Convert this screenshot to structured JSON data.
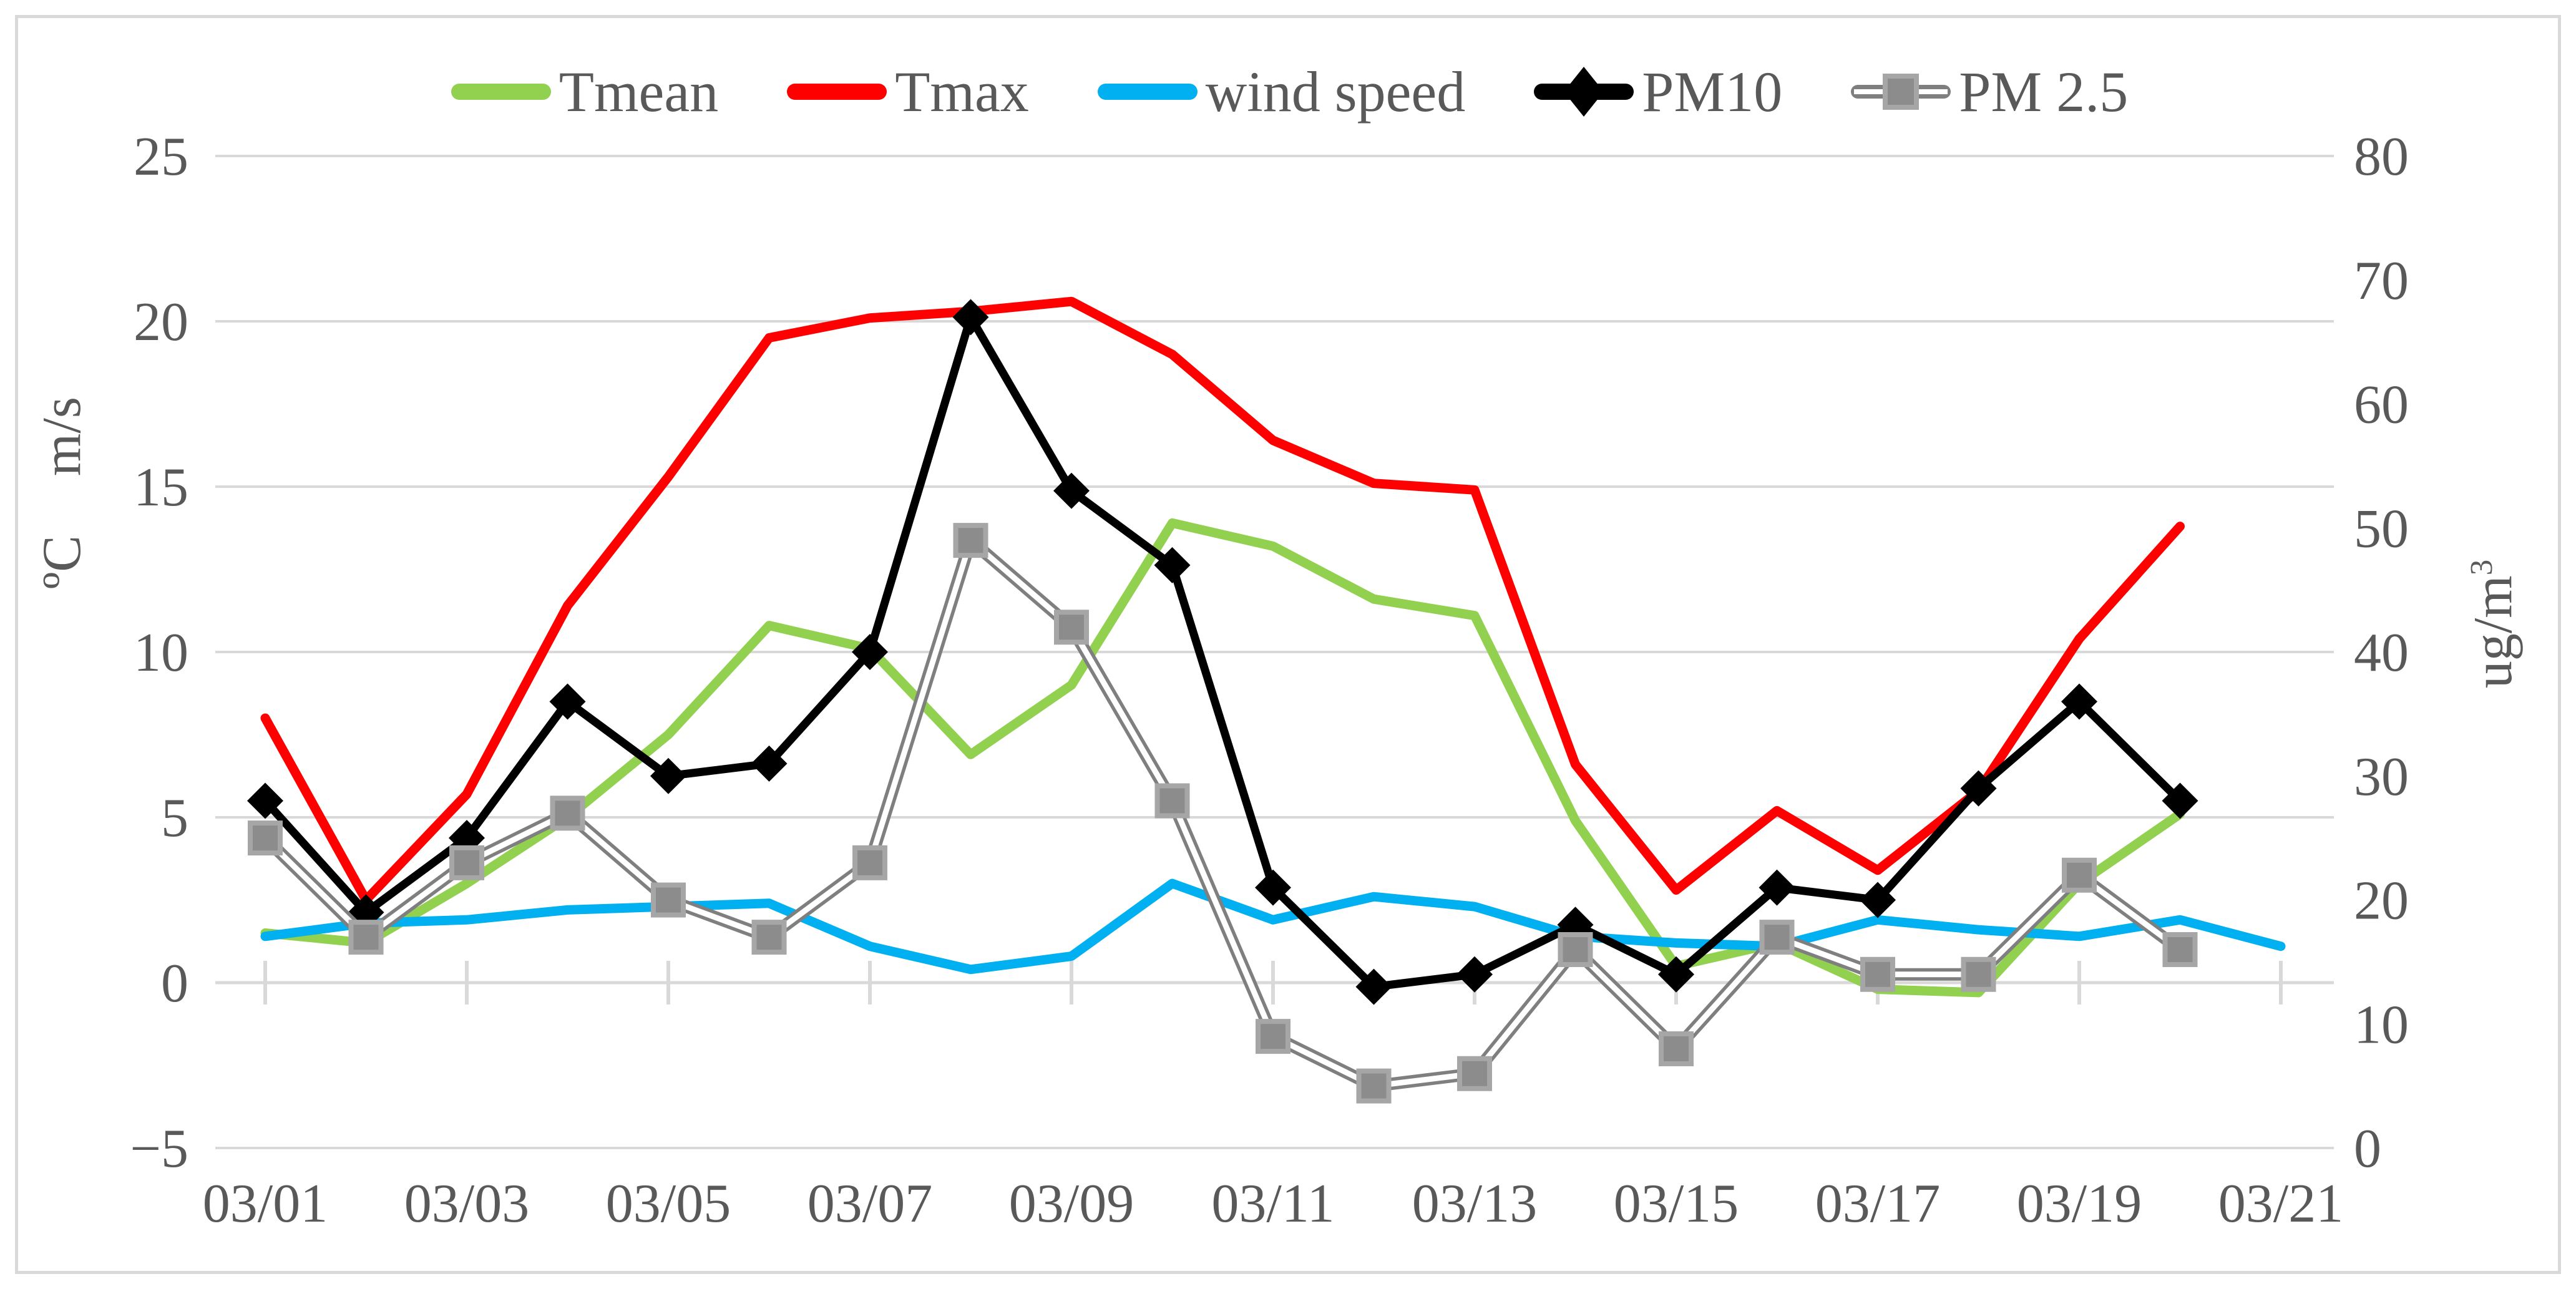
{
  "chart_data": {
    "type": "line",
    "title": "",
    "grid": true,
    "legend_position": "top",
    "categories": [
      "03/01",
      "03/02",
      "03/03",
      "03/04",
      "03/05",
      "03/06",
      "03/07",
      "03/08",
      "03/09",
      "03/10",
      "03/11",
      "03/12",
      "03/13",
      "03/14",
      "03/15",
      "03/16",
      "03/17",
      "03/18",
      "03/19",
      "03/20",
      "03/21"
    ],
    "x_tick_labels": [
      "03/01",
      "03/03",
      "03/05",
      "03/07",
      "03/09",
      "03/11",
      "03/13",
      "03/15",
      "03/17",
      "03/19",
      "03/21"
    ],
    "axis_left": {
      "min": -5,
      "max": 25,
      "ticks": [
        {
          "v": 25,
          "label": "25"
        },
        {
          "v": 20,
          "label": "20"
        },
        {
          "v": 15,
          "label": "15"
        },
        {
          "v": 10,
          "label": "10"
        },
        {
          "v": 5,
          "label": "5"
        },
        {
          "v": 0,
          "label": "0"
        },
        {
          "v": -5,
          "label": "−5"
        }
      ],
      "title_first": "ºC",
      "title_second": "m/s"
    },
    "axis_right": {
      "min": 0,
      "max": 80,
      "tick_labels": [
        "80",
        "70",
        "60",
        "50",
        "40",
        "30",
        "20",
        "10",
        "0"
      ],
      "title_base": "ug/m",
      "title_sup": "3"
    },
    "series": [
      {
        "name": "Tmean",
        "axis": "left",
        "color": "#92D050",
        "marker": "none",
        "line_style": "solid",
        "values": [
          1.5,
          1.2,
          3.0,
          5.0,
          7.5,
          10.8,
          10.1,
          6.9,
          9.0,
          13.9,
          13.2,
          11.6,
          11.1,
          4.9,
          0.5,
          1.2,
          -0.2,
          -0.3,
          3.0,
          5.1
        ]
      },
      {
        "name": "Tmax",
        "axis": "left",
        "color": "#FF0000",
        "marker": "none",
        "line_style": "solid",
        "values": [
          8.0,
          2.5,
          5.7,
          11.4,
          15.3,
          19.5,
          20.1,
          20.3,
          20.6,
          19.0,
          16.4,
          15.1,
          14.9,
          6.6,
          2.8,
          5.2,
          3.4,
          5.8,
          10.4,
          13.8
        ]
      },
      {
        "name": "wind speed",
        "axis": "left",
        "color": "#00B0F0",
        "marker": "none",
        "line_style": "solid",
        "values": [
          1.4,
          1.8,
          1.9,
          2.2,
          2.3,
          2.4,
          1.1,
          0.4,
          0.8,
          3.0,
          1.9,
          2.6,
          2.3,
          1.4,
          1.2,
          1.1,
          1.9,
          1.6,
          1.4,
          1.9,
          1.1
        ]
      },
      {
        "name": "PM10",
        "axis": "right",
        "color": "#000000",
        "marker": "diamond",
        "marker_fill": "#000000",
        "marker_stroke": "#000000",
        "line_style": "solid",
        "values": [
          28,
          19,
          25,
          36,
          30,
          31,
          40,
          67,
          53,
          47,
          21,
          13,
          14,
          18,
          14,
          21,
          20,
          29,
          36,
          28
        ]
      },
      {
        "name": "PM 2.5",
        "axis": "right",
        "color": "#7F7F7F",
        "marker": "square",
        "marker_fill": "#8C8C8C",
        "marker_stroke": "#A6A6A6",
        "line_style": "double",
        "values": [
          25,
          17,
          23,
          27,
          20,
          17,
          23,
          49,
          42,
          28,
          9,
          5,
          6,
          16,
          8,
          17,
          14,
          14,
          22,
          16
        ]
      }
    ]
  }
}
